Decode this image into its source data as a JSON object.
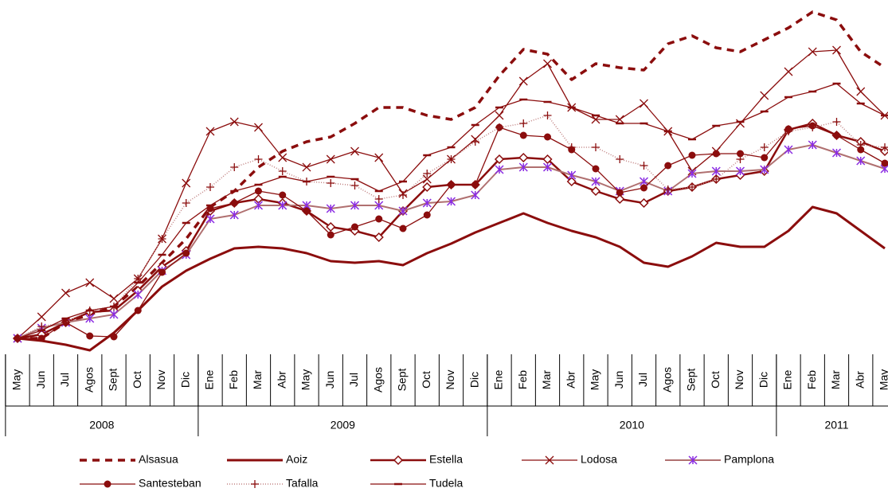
{
  "chart_data": {
    "type": "line",
    "categories": [
      "May",
      "Jun",
      "Jul",
      "Agos",
      "Sept",
      "Oct",
      "Nov",
      "Dic",
      "Ene",
      "Feb",
      "Mar",
      "Abr",
      "May",
      "Jun",
      "Jul",
      "Agos",
      "Sept",
      "Oct",
      "Nov",
      "Dic",
      "Ene",
      "Feb",
      "Mar",
      "Abr",
      "May",
      "Jun",
      "Jul",
      "Agos",
      "Sept",
      "Oct",
      "Nov",
      "Dic",
      "Ene",
      "Feb",
      "Mar",
      "Abr",
      "May"
    ],
    "x_groups": [
      {
        "label": "2008",
        "span": 8
      },
      {
        "label": "2009",
        "span": 12
      },
      {
        "label": "2010",
        "span": 12
      },
      {
        "label": "2011",
        "span": 5
      }
    ],
    "ylim": [
      0,
      440
    ],
    "series": [
      {
        "name": "Alsasua",
        "color": "#8b0d0d",
        "width": 3.5,
        "dash": "9 7",
        "marker": "none",
        "values": [
          15,
          15,
          35,
          45,
          55,
          80,
          110,
          140,
          180,
          200,
          230,
          250,
          262,
          268,
          285,
          305,
          305,
          295,
          290,
          305,
          345,
          378,
          372,
          340,
          360,
          355,
          352,
          385,
          395,
          380,
          375,
          390,
          405,
          425,
          415,
          375,
          355
        ]
      },
      {
        "name": "Aoiz",
        "color": "#8b0d0d",
        "width": 3,
        "dash": "none",
        "marker": "none",
        "values": [
          15,
          12,
          7,
          0,
          22,
          50,
          80,
          100,
          115,
          128,
          130,
          128,
          122,
          112,
          110,
          112,
          107,
          122,
          134,
          148,
          160,
          172,
          160,
          150,
          142,
          130,
          110,
          105,
          118,
          135,
          130,
          130,
          150,
          180,
          172,
          150,
          128
        ]
      },
      {
        "name": "Estella",
        "color": "#8b0d0d",
        "width": 2.5,
        "dash": "none",
        "marker": "diamond",
        "values": [
          15,
          20,
          35,
          48,
          50,
          75,
          105,
          125,
          175,
          185,
          190,
          185,
          175,
          155,
          150,
          142,
          175,
          205,
          208,
          208,
          240,
          242,
          240,
          212,
          200,
          190,
          185,
          200,
          205,
          215,
          220,
          225,
          277,
          285,
          270,
          262,
          250
        ]
      },
      {
        "name": "Lodosa",
        "color": "#8b0d0d",
        "width": 1.3,
        "dash": "none",
        "marker": "x",
        "values": [
          15,
          42,
          72,
          85,
          65,
          90,
          140,
          210,
          275,
          287,
          280,
          242,
          230,
          240,
          250,
          242,
          197,
          215,
          240,
          265,
          295,
          338,
          360,
          305,
          290,
          290,
          310,
          275,
          225,
          250,
          285,
          320,
          350,
          375,
          377,
          325,
          295
        ]
      },
      {
        "name": "Pamplona",
        "color": "#b07070",
        "width": 2,
        "dash": "none",
        "marker": "asterisk",
        "marker_color": "#8a2be2",
        "values": [
          15,
          28,
          35,
          40,
          45,
          70,
          100,
          120,
          165,
          170,
          182,
          182,
          182,
          178,
          182,
          182,
          175,
          185,
          187,
          195,
          227,
          230,
          230,
          220,
          212,
          200,
          212,
          200,
          222,
          225,
          225,
          227,
          252,
          258,
          248,
          238,
          228
        ]
      },
      {
        "name": "Santesteban",
        "color": "#8b0d0d",
        "width": 1.3,
        "dash": "none",
        "marker": "circle",
        "values": [
          15,
          15,
          35,
          18,
          17,
          50,
          98,
          122,
          178,
          185,
          200,
          195,
          175,
          145,
          155,
          165,
          153,
          170,
          208,
          208,
          280,
          270,
          268,
          252,
          228,
          198,
          204,
          232,
          245,
          247,
          247,
          242,
          278,
          282,
          270,
          252,
          235
        ]
      },
      {
        "name": "Tafalla",
        "color": "#c08080",
        "width": 1.5,
        "dash": "1 2",
        "marker": "plus",
        "marker_color": "#8b0d0d",
        "values": [
          15,
          30,
          35,
          50,
          55,
          90,
          140,
          185,
          205,
          230,
          240,
          225,
          212,
          210,
          207,
          190,
          195,
          222,
          240,
          262,
          280,
          285,
          295,
          255,
          255,
          240,
          232,
          202,
          205,
          215,
          240,
          255,
          275,
          280,
          287,
          258,
          255
        ]
      },
      {
        "name": "Tudela",
        "color": "#8b0d0d",
        "width": 1.3,
        "dash": "none",
        "marker": "dash",
        "values": [
          15,
          25,
          40,
          50,
          55,
          85,
          120,
          160,
          182,
          200,
          208,
          218,
          212,
          218,
          215,
          200,
          212,
          245,
          255,
          283,
          305,
          315,
          312,
          305,
          295,
          285,
          285,
          275,
          265,
          282,
          287,
          300,
          318,
          325,
          335,
          310,
          295
        ]
      }
    ]
  }
}
